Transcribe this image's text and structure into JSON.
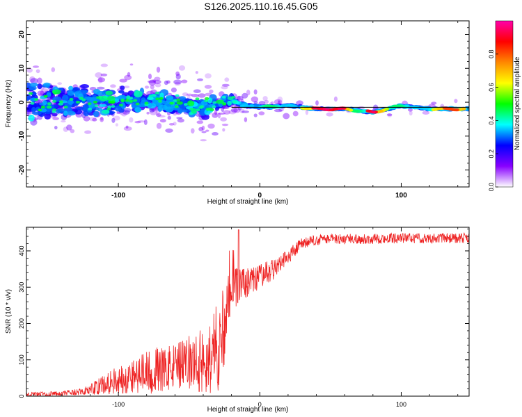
{
  "title": "S126.2025.110.16.45.G05",
  "colors": {
    "snr_line": "#ee2222",
    "axis": "#000000",
    "ref_line": "#000000"
  },
  "chart_data": [
    {
      "type": "heatmap",
      "name": "spectrogram",
      "xlabel": "Height of straight line (km)",
      "ylabel": "Frequency (Hz)",
      "xlim": [
        -165,
        148
      ],
      "ylim": [
        -25,
        24
      ],
      "xticks": [
        -100,
        0,
        100
      ],
      "xtick_labels": [
        "-100",
        "0",
        "100"
      ],
      "yticks": [
        -20,
        -10,
        0,
        10,
        20
      ],
      "ytick_labels": [
        "-20",
        "-10",
        "0",
        "10",
        "20"
      ],
      "colorbar": {
        "label": "Normalized spectral amplitude",
        "range": [
          0,
          1
        ],
        "ticks": [
          0.0,
          0.2,
          0.4,
          0.6,
          0.8
        ],
        "tick_labels": [
          "0.0",
          "0.2",
          "0.4",
          "0.6",
          "0.8"
        ],
        "colormap": [
          "#ffffff",
          "#8800ff",
          "#0000ff",
          "#00ffff",
          "#00ff00",
          "#ffff00",
          "#ff8800",
          "#ff0000",
          "#ff00aa"
        ]
      },
      "reference_line_y": -1.5,
      "ridge": {
        "description": "Noisy broad energy centered near 0 Hz for heights below -20 km; narrow coherent ridge near -2 Hz from -20 km to 148 km",
        "points": [
          {
            "x": -165,
            "y": 0,
            "spread": 9
          },
          {
            "x": -120,
            "y": 0,
            "spread": 7
          },
          {
            "x": -80,
            "y": 0.5,
            "spread": 4.5
          },
          {
            "x": -40,
            "y": -1.5,
            "spread": 4
          },
          {
            "x": -20,
            "y": 0.5,
            "spread": 2
          },
          {
            "x": -15,
            "y": -0.5,
            "spread": 0.9
          },
          {
            "x": 0,
            "y": -1.5,
            "spread": 0.7
          },
          {
            "x": 20,
            "y": -1.0,
            "spread": 0.6
          },
          {
            "x": 40,
            "y": -2.0,
            "spread": 0.5
          },
          {
            "x": 60,
            "y": -2.0,
            "spread": 0.5
          },
          {
            "x": 80,
            "y": -3.0,
            "spread": 0.5
          },
          {
            "x": 100,
            "y": -1.0,
            "spread": 0.5
          },
          {
            "x": 120,
            "y": -2.0,
            "spread": 0.5
          },
          {
            "x": 148,
            "y": -2.0,
            "spread": 0.5
          }
        ]
      }
    },
    {
      "type": "line",
      "name": "snr",
      "xlabel": "Height of straight line (km)",
      "ylabel": "SNR (10 * v/v)",
      "xlim": [
        -165,
        148
      ],
      "ylim": [
        0,
        465
      ],
      "xticks": [
        -100,
        0,
        100
      ],
      "xtick_labels": [
        "-100",
        "0",
        "100"
      ],
      "yticks": [
        0,
        100,
        200,
        300,
        400
      ],
      "ytick_labels": [
        "0",
        "100",
        "200",
        "300",
        "400"
      ],
      "series": [
        {
          "name": "SNR",
          "x": [
            -165,
            -140,
            -125,
            -115,
            -105,
            -95,
            -85,
            -75,
            -65,
            -55,
            -45,
            -35,
            -30,
            -25,
            -22,
            -20,
            -15,
            -10,
            -5,
            0,
            10,
            20,
            30,
            40,
            50,
            60,
            80,
            100,
            120,
            148
          ],
          "mean": [
            5,
            7,
            12,
            25,
            40,
            50,
            60,
            70,
            75,
            85,
            95,
            105,
            140,
            200,
            250,
            290,
            300,
            310,
            320,
            330,
            350,
            385,
            420,
            430,
            433,
            433,
            433,
            435,
            435,
            435
          ],
          "noise": [
            4,
            5,
            7,
            15,
            25,
            30,
            40,
            45,
            45,
            50,
            60,
            70,
            95,
            80,
            60,
            45,
            40,
            30,
            25,
            25,
            20,
            16,
            12,
            10,
            10,
            10,
            10,
            10,
            10,
            10
          ],
          "peak_max": 458
        }
      ]
    }
  ]
}
